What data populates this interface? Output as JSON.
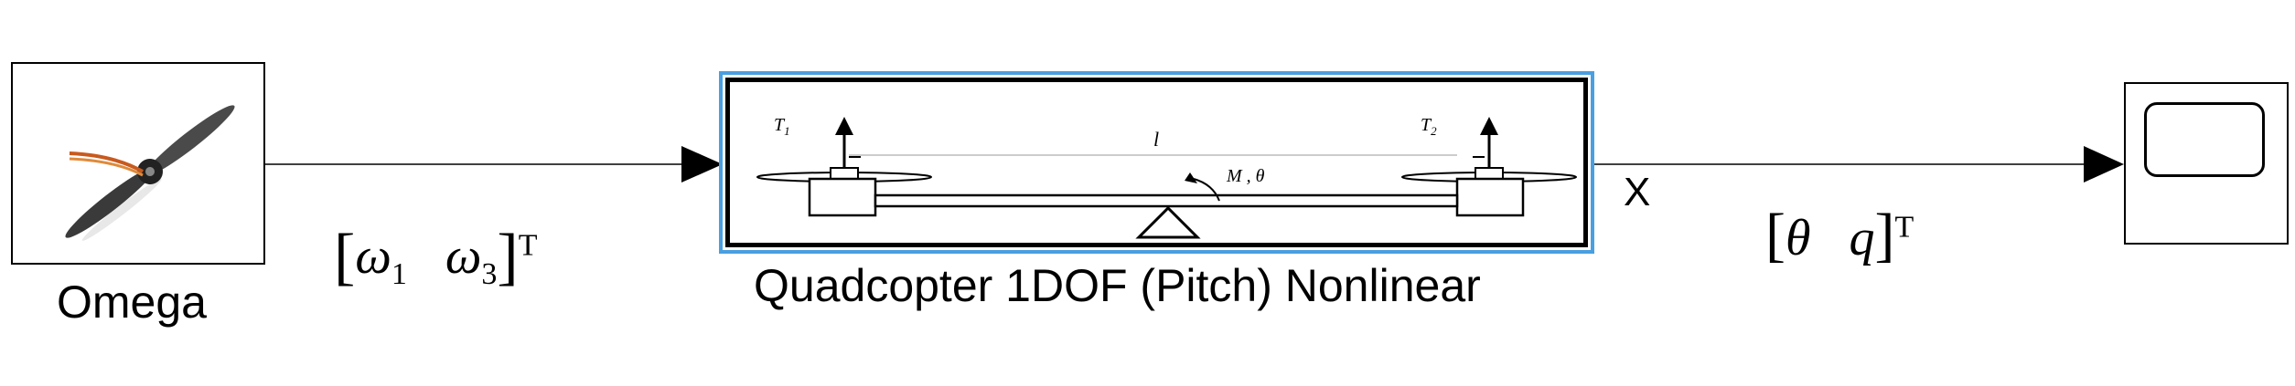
{
  "blocks": {
    "source": {
      "label": "Omega"
    },
    "plant": {
      "label": "Quadcopter 1DOF (Pitch) Nonlinear",
      "image": {
        "t1": "T",
        "t1_sub": "1",
        "t2": "T",
        "t2_sub": "2",
        "length": "l",
        "moment": "M , θ"
      }
    },
    "sink": {
      "label": ""
    }
  },
  "signals": {
    "input": {
      "open": "[",
      "w1": "ω",
      "w1_sub": "1",
      "w3": "ω",
      "w3_sub": "3",
      "close": "]",
      "sup": "T"
    },
    "output": {
      "port": "X",
      "open": "[",
      "theta": "θ",
      "q": "q",
      "close": "]",
      "sup": "T"
    }
  },
  "colors": {
    "selection": "#4a9fe0",
    "line": "#000000"
  }
}
